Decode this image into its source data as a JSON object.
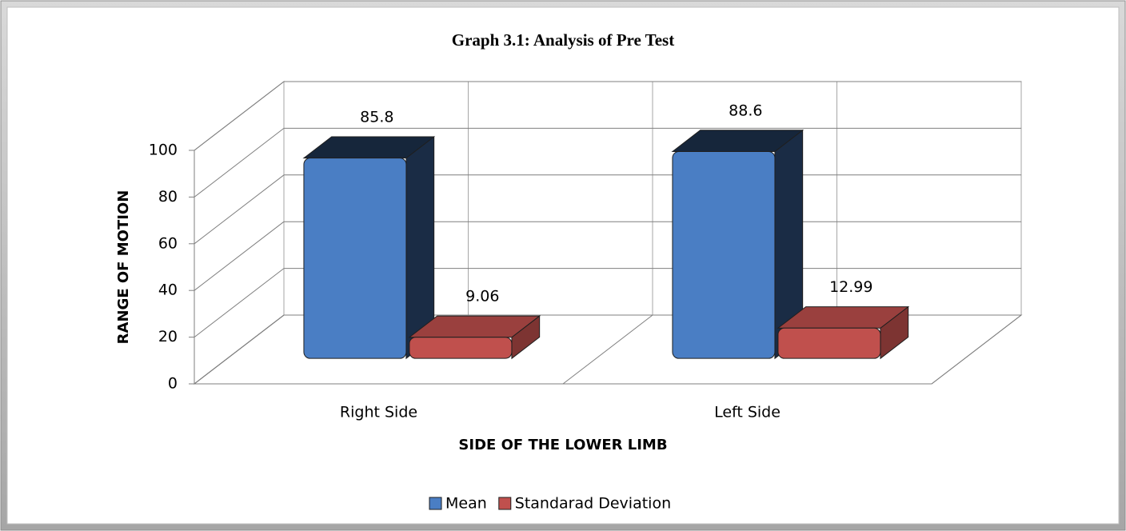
{
  "chart_data": {
    "type": "bar3d",
    "title": "Graph 3.1: Analysis of Pre Test",
    "xlabel": "SIDE OF THE LOWER LIMB",
    "ylabel": "RANGE OF MOTION",
    "categories": [
      "Right Side",
      "Left Side"
    ],
    "series": [
      {
        "name": "Mean",
        "color": "#4a7ec4",
        "values": [
          85.8,
          88.6
        ]
      },
      {
        "name": "Standarad Deviation",
        "color": "#c0504d",
        "values": [
          9.06,
          12.99
        ]
      }
    ],
    "ylim": [
      0,
      100
    ],
    "yticks": [
      0,
      20,
      40,
      60,
      80,
      100
    ],
    "grid": true,
    "legend": "bottom"
  }
}
